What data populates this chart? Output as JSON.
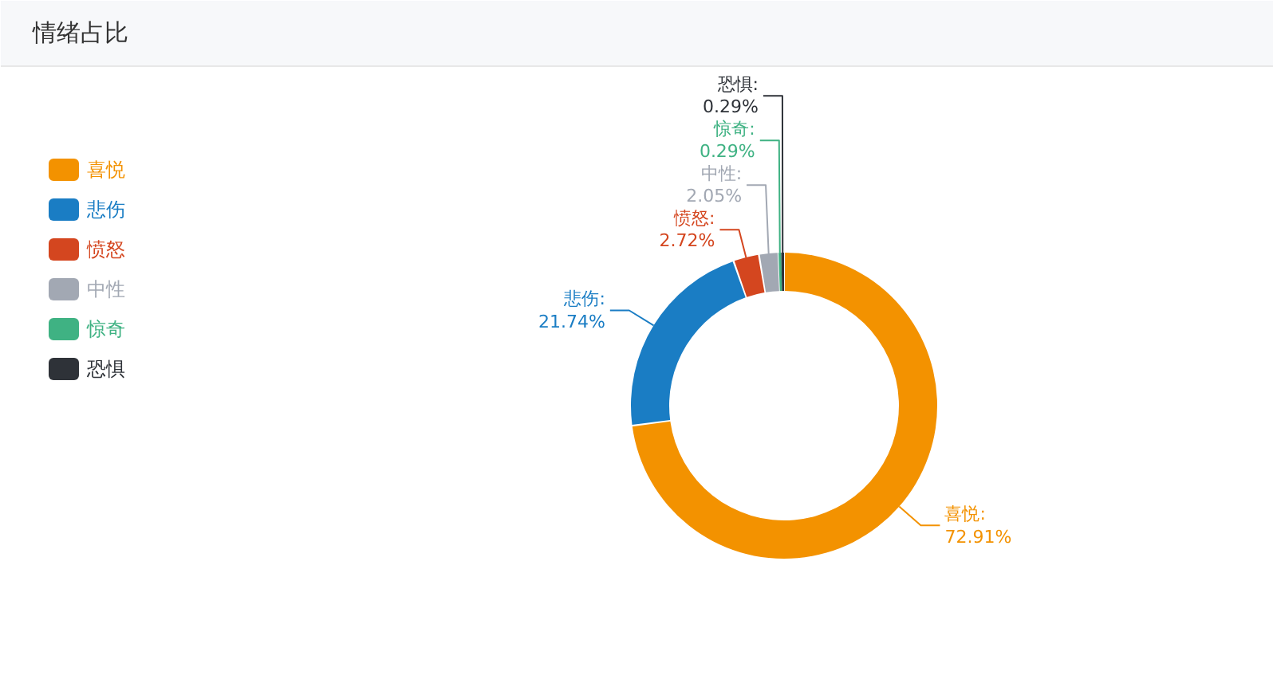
{
  "chart_data": {
    "type": "donut",
    "title": "情绪占比",
    "categories": [
      "喜悦",
      "悲伤",
      "愤怒",
      "中性",
      "惊奇",
      "恐惧"
    ],
    "values": [
      72.91,
      21.74,
      2.72,
      2.05,
      0.29,
      0.29
    ],
    "colors": [
      "#f39200",
      "#1a7dc4",
      "#d4461f",
      "#a2a8b3",
      "#3fb283",
      "#2e3238"
    ],
    "value_labels": [
      "喜悦:\n72.91%",
      "悲伤:\n21.74%",
      "愤怒:\n2.72%",
      "中性:\n2.05%",
      "惊奇:\n0.29%",
      "恐惧:\n0.29%"
    ],
    "legend": "left"
  }
}
